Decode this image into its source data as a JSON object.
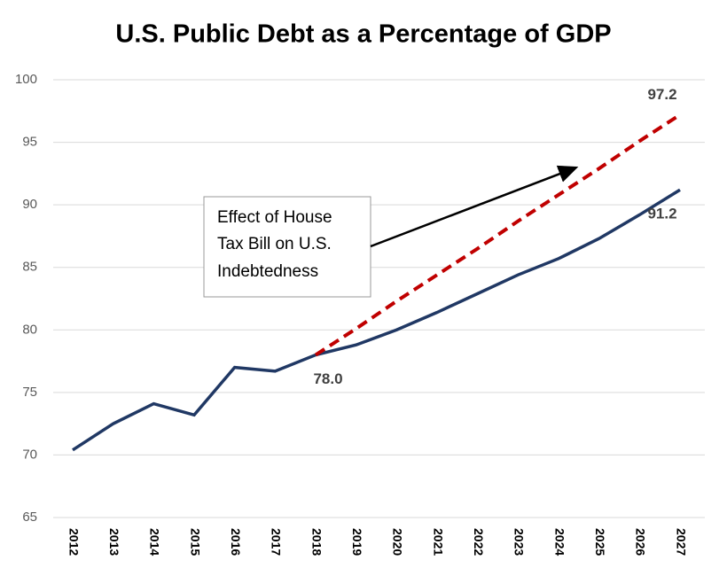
{
  "chart_data": {
    "type": "line",
    "title": "U.S. Public Debt as a Percentage of GDP",
    "categories": [
      "2012",
      "2013",
      "2014",
      "2015",
      "2016",
      "2017",
      "2018",
      "2019",
      "2020",
      "2021",
      "2022",
      "2023",
      "2024",
      "2025",
      "2026",
      "2027"
    ],
    "series": [
      {
        "color": "#203864",
        "dashed": false,
        "values": [
          70.4,
          72.5,
          74.1,
          73.2,
          77.0,
          76.7,
          78.0,
          78.8,
          80.0,
          81.4,
          82.9,
          84.4,
          85.7,
          87.3,
          89.2,
          91.2
        ],
        "value_labels": [
          null,
          null,
          null,
          null,
          null,
          null,
          "78.0",
          null,
          null,
          null,
          null,
          null,
          null,
          null,
          null,
          "91.2"
        ]
      },
      {
        "color": "#c00000",
        "dashed": true,
        "values": [
          null,
          null,
          null,
          null,
          null,
          null,
          78.0,
          80.1,
          82.3,
          84.4,
          86.5,
          88.7,
          90.8,
          92.9,
          95.1,
          97.2
        ],
        "value_labels": [
          null,
          null,
          null,
          null,
          null,
          null,
          null,
          null,
          null,
          null,
          null,
          null,
          null,
          null,
          null,
          "97.2"
        ]
      }
    ],
    "ylim": [
      65,
      100
    ],
    "yticks": [
      65,
      70,
      75,
      80,
      85,
      90,
      95,
      100
    ],
    "grid": true,
    "annotation": [
      "Effect of House",
      "Tax Bill on U.S.",
      "Indebtedness"
    ]
  }
}
